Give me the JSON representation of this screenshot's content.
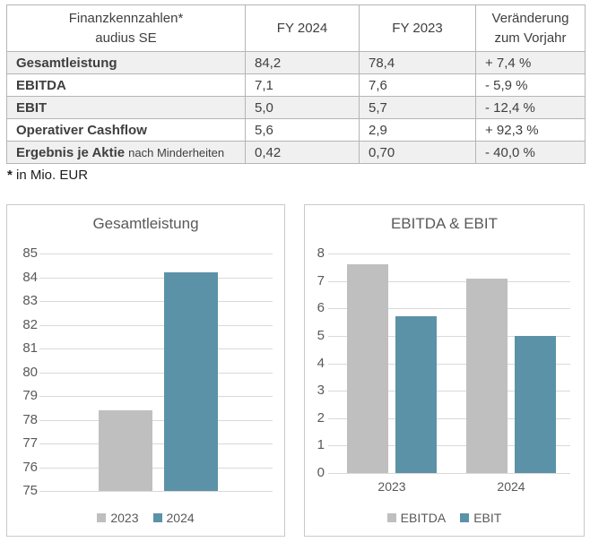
{
  "colors": {
    "bar_gray": "#bfbfbf",
    "bar_blue": "#5b92a8",
    "gridline": "#d9d9d9",
    "chart_text": "#595959",
    "panel_border": "#c9c9c9",
    "table_border": "#b5b5b5",
    "row_stripe": "#f0f0f0"
  },
  "table": {
    "header": {
      "metric_line1": "Finanzkennzahlen*",
      "metric_line2": "audius SE",
      "fy2024": "FY 2024",
      "fy2023": "FY 2023",
      "change_line1": "Veränderung",
      "change_line2": "zum Vorjahr"
    },
    "rows": [
      {
        "label": "Gesamtleistung",
        "suffix": "",
        "fy2024": "84,2",
        "fy2023": "78,4",
        "change": "+ 7,4 %"
      },
      {
        "label": "EBITDA",
        "suffix": "",
        "fy2024": "7,1",
        "fy2023": "7,6",
        "change": "- 5,9 %"
      },
      {
        "label": "EBIT",
        "suffix": "",
        "fy2024": "5,0",
        "fy2023": "5,7",
        "change": "- 12,4 %"
      },
      {
        "label": "Operativer Cashflow",
        "suffix": "",
        "fy2024": "5,6",
        "fy2023": "2,9",
        "change": "+ 92,3 %"
      },
      {
        "label": "Ergebnis je Aktie",
        "suffix": "nach Minderheiten",
        "fy2024": "0,42",
        "fy2023": "0,70",
        "change": "- 40,0 %"
      }
    ],
    "footnote_marker": "*",
    "footnote_text": "in Mio. EUR"
  },
  "chart_data": [
    {
      "type": "bar",
      "title": "Gesamtleistung",
      "categories": [
        ""
      ],
      "series": [
        {
          "name": "2023",
          "color": "#bfbfbf",
          "values": [
            78.4
          ]
        },
        {
          "name": "2024",
          "color": "#5b92a8",
          "values": [
            84.2
          ]
        }
      ],
      "ylim": [
        75,
        85
      ],
      "ytick_step": 1,
      "grid": true,
      "legend_position": "bottom",
      "show_category_labels": false
    },
    {
      "type": "bar",
      "title": "EBITDA & EBIT",
      "categories": [
        "2023",
        "2024"
      ],
      "series": [
        {
          "name": "EBITDA",
          "color": "#bfbfbf",
          "values": [
            7.6,
            7.1
          ]
        },
        {
          "name": "EBIT",
          "color": "#5b92a8",
          "values": [
            5.7,
            5.0
          ]
        }
      ],
      "ylim": [
        0,
        8
      ],
      "ytick_step": 1,
      "grid": true,
      "legend_position": "bottom",
      "show_category_labels": true
    }
  ]
}
